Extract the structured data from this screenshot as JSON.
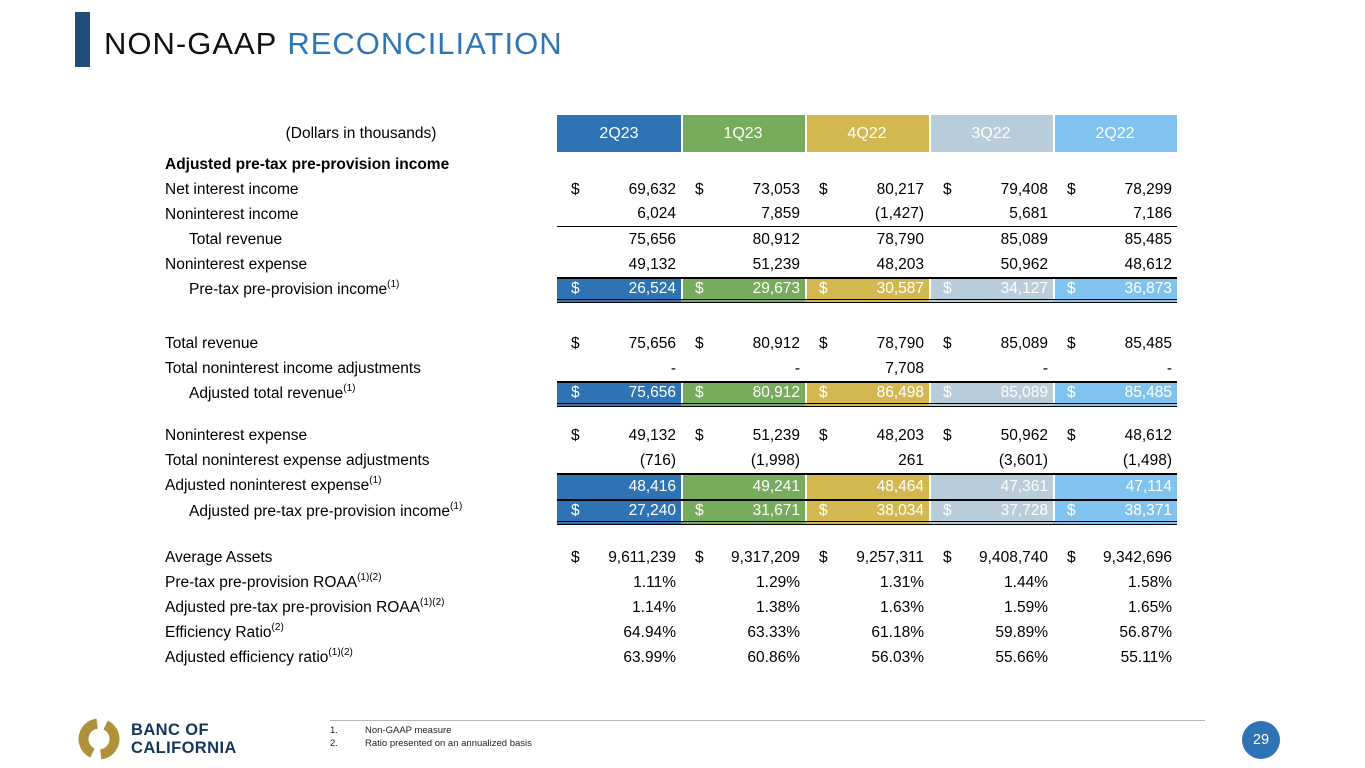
{
  "slide": {
    "title_black": "NON-GAAP",
    "title_blue": "RECONCILIATION",
    "page_number": "29"
  },
  "colors": {
    "accent_bar": "#1F4E79",
    "title_blue": "#2E75B6",
    "page_circle": "#2E74B5",
    "logo_gold": "#AE913B",
    "logo_navy": "#16355B"
  },
  "logo": {
    "line1": "BANC OF",
    "line2": "CALIFORNIA"
  },
  "footnotes": [
    {
      "num": "1.",
      "text": "Non-GAAP measure"
    },
    {
      "num": "2.",
      "text": "Ratio presented on an annualized basis"
    }
  ],
  "table": {
    "units_label": "(Dollars in thousands)",
    "columns": [
      {
        "label": "2Q23",
        "color": "#2E74B5"
      },
      {
        "label": "1Q23",
        "color": "#77AC5C"
      },
      {
        "label": "4Q22",
        "color": "#D2B84E"
      },
      {
        "label": "3Q22",
        "color": "#B8CDD9"
      },
      {
        "label": "2Q22",
        "color": "#81C3EF"
      }
    ],
    "rows": [
      {
        "type": "section",
        "label": "Adjusted pre-tax pre-provision income"
      },
      {
        "label": "Net interest income",
        "dollar": true,
        "values": [
          "69,632",
          "73,053",
          "80,217",
          "79,408",
          "78,299"
        ]
      },
      {
        "label": "Noninterest income",
        "line_bottom": true,
        "values": [
          "6,024",
          "7,859",
          "(1,427)",
          "5,681",
          "7,186"
        ]
      },
      {
        "label": "Total revenue",
        "indent": true,
        "values": [
          "75,656",
          "80,912",
          "78,790",
          "85,089",
          "85,485"
        ]
      },
      {
        "label": "Noninterest expense",
        "values": [
          "49,132",
          "51,239",
          "48,203",
          "50,962",
          "48,612"
        ]
      },
      {
        "label": "Pre-tax pre-provision income",
        "sup": "(1)",
        "indent": true,
        "dollar": true,
        "highlight": true,
        "line_top": true,
        "double_bottom": true,
        "values": [
          "26,524",
          "29,673",
          "30,587",
          "34,127",
          "36,873"
        ]
      },
      {
        "type": "spacer",
        "height": 28
      },
      {
        "label": "Total revenue",
        "dollar": true,
        "values": [
          "75,656",
          "80,912",
          "78,790",
          "85,089",
          "85,485"
        ]
      },
      {
        "label": "Total noninterest income adjustments",
        "values": [
          "-",
          "-",
          "7,708",
          "-",
          "-"
        ]
      },
      {
        "label": "Adjusted total revenue",
        "sup": "(1)",
        "indent": true,
        "dollar": true,
        "highlight": true,
        "line_top": true,
        "double_bottom": true,
        "values": [
          "75,656",
          "80,912",
          "86,498",
          "85,089",
          "85,485"
        ]
      },
      {
        "type": "spacer",
        "height": 16
      },
      {
        "label": "Noninterest expense",
        "dollar": true,
        "values": [
          "49,132",
          "51,239",
          "48,203",
          "50,962",
          "48,612"
        ]
      },
      {
        "label": "Total noninterest expense adjustments",
        "values": [
          "(716)",
          "(1,998)",
          "261",
          "(3,601)",
          "(1,498)"
        ]
      },
      {
        "label": "Adjusted noninterest expense",
        "sup": "(1)",
        "highlight": true,
        "line_top": true,
        "values": [
          "48,416",
          "49,241",
          "48,464",
          "47,361",
          "47,114"
        ]
      },
      {
        "label": "Adjusted pre-tax pre-provision income",
        "sup": "(1)",
        "indent": true,
        "dollar": true,
        "highlight": true,
        "line_top": true,
        "double_bottom": true,
        "values": [
          "27,240",
          "31,671",
          "38,034",
          "37,728",
          "38,371"
        ]
      },
      {
        "type": "spacer",
        "height": 20
      },
      {
        "label": "Average Assets",
        "dollar": true,
        "values": [
          "9,611,239",
          "9,317,209",
          "9,257,311",
          "9,408,740",
          "9,342,696"
        ]
      },
      {
        "label": "Pre-tax pre-provision ROAA",
        "sup": "(1)(2)",
        "values": [
          "1.11%",
          "1.29%",
          "1.31%",
          "1.44%",
          "1.58%"
        ]
      },
      {
        "label": "Adjusted pre-tax pre-provision ROAA",
        "sup": "(1)(2)",
        "values": [
          "1.14%",
          "1.38%",
          "1.63%",
          "1.59%",
          "1.65%"
        ]
      },
      {
        "label": "Efficiency Ratio",
        "sup": "(2)",
        "values": [
          "64.94%",
          "63.33%",
          "61.18%",
          "59.89%",
          "56.87%"
        ]
      },
      {
        "label": "Adjusted efficiency ratio",
        "sup": "(1)(2)",
        "values": [
          "63.99%",
          "60.86%",
          "56.03%",
          "55.66%",
          "55.11%"
        ]
      }
    ]
  }
}
